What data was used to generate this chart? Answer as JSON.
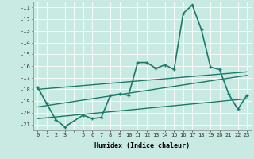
{
  "xlabel": "Humidex (Indice chaleur)",
  "background_color": "#c8eae2",
  "grid_color": "#ffffff",
  "ylim": [
    -21.5,
    -10.5
  ],
  "xlim": [
    -0.5,
    23.5
  ],
  "yticks": [
    -11,
    -12,
    -13,
    -14,
    -15,
    -16,
    -17,
    -18,
    -19,
    -20,
    -21
  ],
  "series": [
    {
      "x": [
        0,
        23
      ],
      "y": [
        -20.5,
        -18.8
      ],
      "color": "#1a7a6a",
      "linewidth": 1.0,
      "marker": null,
      "linestyle": "-"
    },
    {
      "x": [
        0,
        23
      ],
      "y": [
        -19.5,
        -16.8
      ],
      "color": "#1a7a6a",
      "linewidth": 1.0,
      "marker": null,
      "linestyle": "-"
    },
    {
      "x": [
        0,
        23
      ],
      "y": [
        -18.0,
        -16.5
      ],
      "color": "#1a7a6a",
      "linewidth": 1.0,
      "marker": null,
      "linestyle": "-"
    },
    {
      "x": [
        0,
        1,
        2,
        3,
        5,
        6,
        7,
        8,
        9,
        10,
        11,
        12,
        13,
        14,
        15,
        16,
        17,
        18,
        19,
        20,
        21,
        22,
        23
      ],
      "y": [
        -17.8,
        -19.2,
        -20.6,
        -21.2,
        -20.2,
        -20.5,
        -20.4,
        -18.5,
        -18.4,
        -18.5,
        -15.7,
        -15.7,
        -16.2,
        -15.9,
        -16.3,
        -11.5,
        -10.8,
        -12.9,
        -16.1,
        -16.3,
        -18.4,
        -19.7,
        -18.5
      ],
      "color": "#1a7a6a",
      "linewidth": 1.2,
      "marker": "+",
      "linestyle": "-"
    }
  ]
}
